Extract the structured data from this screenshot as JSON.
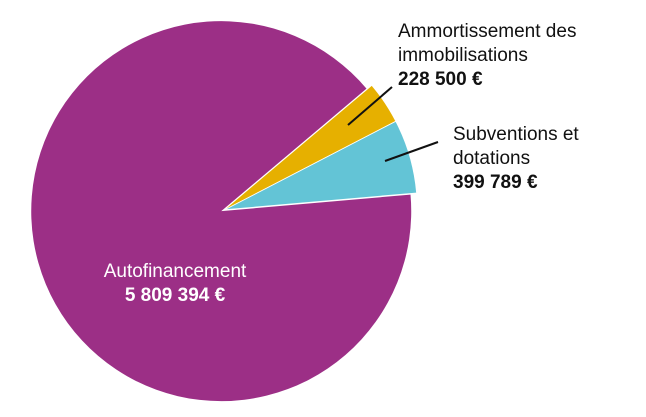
{
  "chart_data": {
    "type": "pie",
    "categories": [
      "Autofinancement",
      "Ammortissement des immobilisations",
      "Subventions et dotations"
    ],
    "values": [
      5809394,
      228500,
      399789
    ],
    "value_labels": [
      "5 809 394 €",
      "228 500 €",
      "399 789 €"
    ],
    "colors": [
      "#9c2f86",
      "#e6b000",
      "#63c4d6"
    ]
  }
}
